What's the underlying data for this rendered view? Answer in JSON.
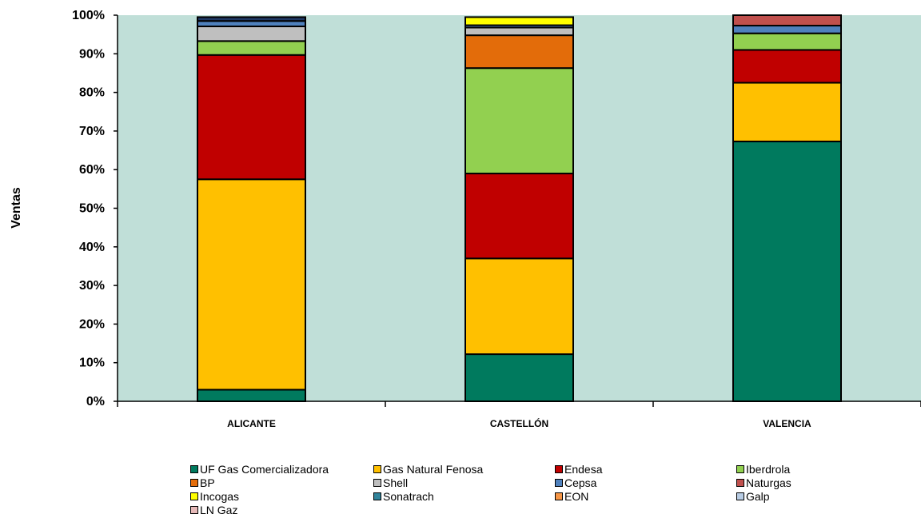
{
  "chart_data": {
    "type": "bar",
    "stacked": "percent",
    "title": "",
    "xlabel": "",
    "ylabel": "Ventas",
    "ylim": [
      0,
      100
    ],
    "yticks": [
      "0%",
      "10%",
      "20%",
      "30%",
      "40%",
      "50%",
      "60%",
      "70%",
      "80%",
      "90%",
      "100%"
    ],
    "grid": false,
    "legend_position": "bottom",
    "plot_background": "#c0dfd8",
    "categories": [
      "ALICANTE",
      "CASTELLÓN",
      "VALENCIA"
    ],
    "series": [
      {
        "name": "UF Gas Comercializadora",
        "color": "#007a5e",
        "values": [
          3.0,
          12.2,
          67.3
        ]
      },
      {
        "name": "Gas Natural Fenosa",
        "color": "#ffc000",
        "values": [
          54.5,
          24.8,
          15.2
        ]
      },
      {
        "name": "Endesa",
        "color": "#c00000",
        "values": [
          32.2,
          22.0,
          8.5
        ]
      },
      {
        "name": "Iberdrola",
        "color": "#92d050",
        "values": [
          3.6,
          27.3,
          4.3
        ]
      },
      {
        "name": "BP",
        "color": "#e36c0a",
        "values": [
          0.0,
          8.5,
          0.0
        ]
      },
      {
        "name": "Shell",
        "color": "#bfbfbf",
        "values": [
          3.8,
          2.0,
          0.0
        ]
      },
      {
        "name": "Cepsa",
        "color": "#4f81bd",
        "values": [
          1.4,
          0.6,
          2.0
        ]
      },
      {
        "name": "Naturgas",
        "color": "#c0504d",
        "values": [
          0.0,
          0.0,
          2.7
        ]
      },
      {
        "name": "Incogas",
        "color": "#ffff00",
        "values": [
          0.0,
          2.1,
          0.0
        ]
      },
      {
        "name": "Sonatrach",
        "color": "#31849b",
        "values": [
          0.0,
          0.0,
          0.0
        ]
      },
      {
        "name": "EON",
        "color": "#f79646",
        "values": [
          0.0,
          0.0,
          0.0
        ]
      },
      {
        "name": "Galp",
        "color": "#b8cce4",
        "values": [
          0.0,
          0.0,
          0.0
        ]
      },
      {
        "name": "LN Gaz",
        "color": "#e6b9b8",
        "values": [
          0.0,
          0.0,
          0.0
        ]
      },
      {
        "name": "",
        "color": "#1f3864",
        "values": [
          1.0,
          0.0,
          0.0
        ]
      }
    ]
  }
}
